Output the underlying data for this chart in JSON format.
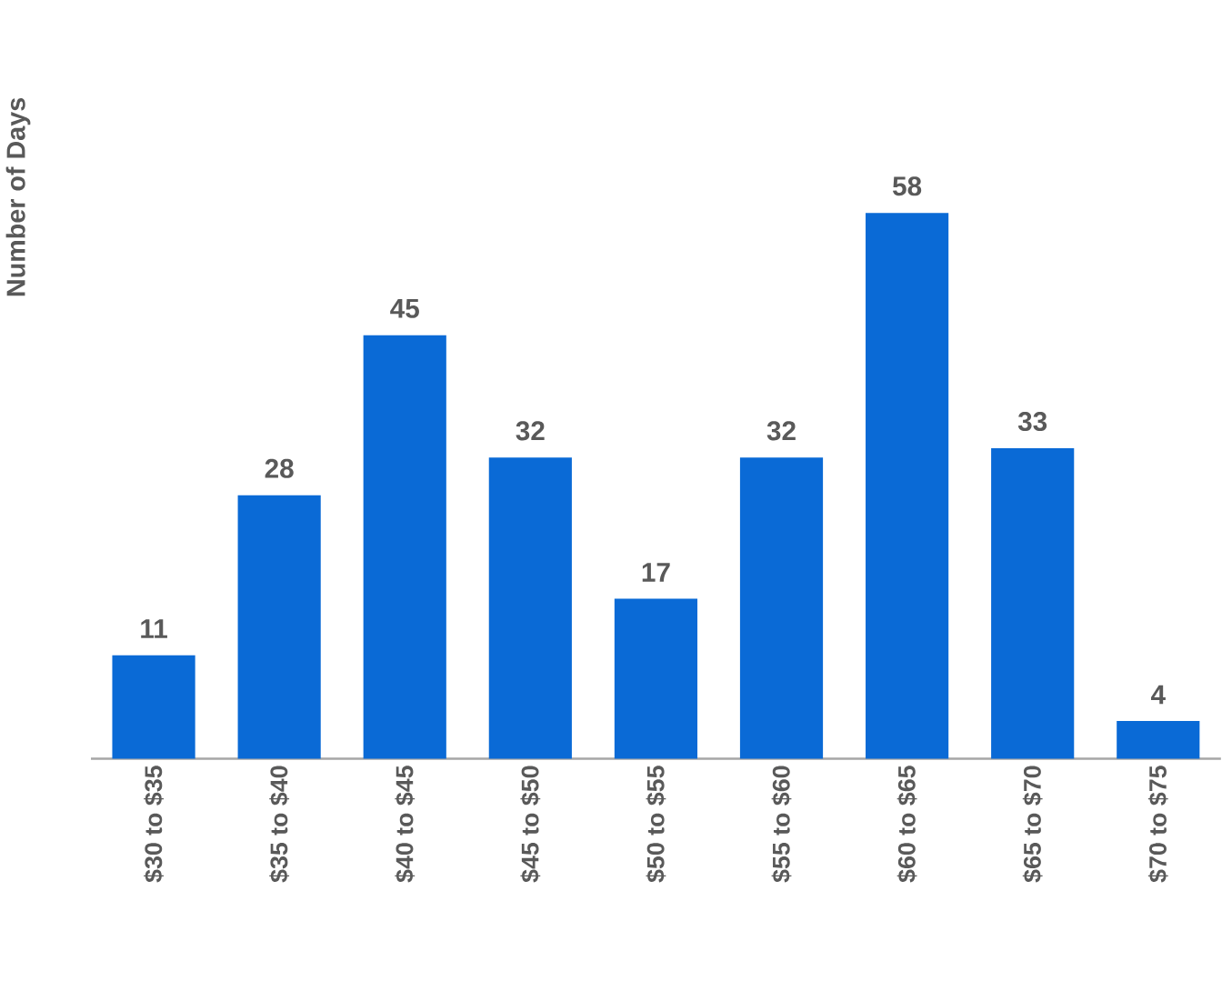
{
  "chart_data": {
    "type": "bar",
    "ylabel": "Number of Days",
    "data_labels": true,
    "color": "#0a6ad6",
    "categories": [
      "$30 to $35",
      "$35 to $40",
      "$40 to $45",
      "$45 to $50",
      "$50 to $55",
      "$55 to $60",
      "$60 to $65",
      "$65 to $70",
      "$70 to $75"
    ],
    "values": [
      11,
      28,
      45,
      32,
      17,
      32,
      58,
      33,
      4
    ]
  }
}
